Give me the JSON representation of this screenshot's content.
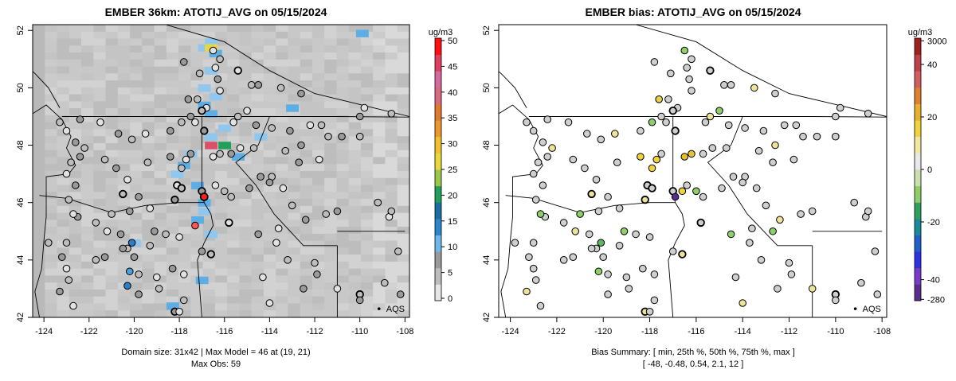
{
  "chart_data": [
    {
      "type": "heatmap",
      "title": "EMBER 36km: ATOTIJ_AVG on 05/15/2024",
      "xlim": [
        -124.5,
        -107.8
      ],
      "ylim": [
        42,
        52.2
      ],
      "xticks": [
        "-124",
        "-122",
        "-120",
        "-118",
        "-116",
        "-114",
        "-112",
        "-110",
        "-108"
      ],
      "yticks": [
        "42",
        "44",
        "46",
        "48",
        "50",
        "52"
      ],
      "colorbar": {
        "unit": "ug/m3",
        "ticks": [
          "50",
          "45",
          "40",
          "35",
          "30",
          "25",
          "20",
          "15",
          "10",
          "5",
          "0"
        ],
        "range": [
          0,
          50
        ]
      },
      "caption": [
        "Domain size: 31x42 | Max Model = 46 at (19, 21)",
        "Max Obs: 59"
      ],
      "network_label": "AQS",
      "highlight_cells": [
        {
          "lon": -116.6,
          "lat": 48.0,
          "value": 46
        },
        {
          "lon": -116.0,
          "lat": 48.0,
          "value": 22
        },
        {
          "lon": -116.6,
          "lat": 51.4,
          "value": 14
        }
      ],
      "max_obs_site": {
        "lon": -116.9,
        "lat": 46.2,
        "value": 59
      }
    },
    {
      "type": "scatter",
      "title": "EMBER bias: ATOTIJ_AVG on 05/15/2024",
      "xlim": [
        -124.5,
        -107.8
      ],
      "ylim": [
        42,
        52.2
      ],
      "xticks": [
        "-124",
        "-122",
        "-120",
        "-118",
        "-116",
        "-114",
        "-112",
        "-110",
        "-108"
      ],
      "yticks": [
        "42",
        "44",
        "46",
        "48",
        "50",
        "52"
      ],
      "colorbar": {
        "unit": "ug/m3",
        "ticks": [
          "3000",
          "40",
          "20",
          "0",
          "-20",
          "-40",
          "-280"
        ]
      },
      "caption": [
        "Bias Summary: [ min, 25th %, 50th %, 75th %, max ]",
        "[ -48,   -0.48,   0.54,   2.1,   12 ]"
      ],
      "network_label": "AQS",
      "bias_summary": {
        "min": -48,
        "p25": -0.48,
        "p50": 0.54,
        "p75": 2.1,
        "max": 12
      }
    }
  ],
  "colors": {
    "land": "#c9c9c9",
    "ocean_far": "#a8a8a8",
    "ocean_near": "#b7b7b7",
    "smoke_blue": "#5eaee6",
    "site_grey": "#cfcfcf",
    "site_yellow": "#f0d23c",
    "site_orange": "#e8c02a",
    "site_green": "#8fcf6a",
    "site_purple": "#5a2c8c",
    "site_red": "#ff2020"
  }
}
